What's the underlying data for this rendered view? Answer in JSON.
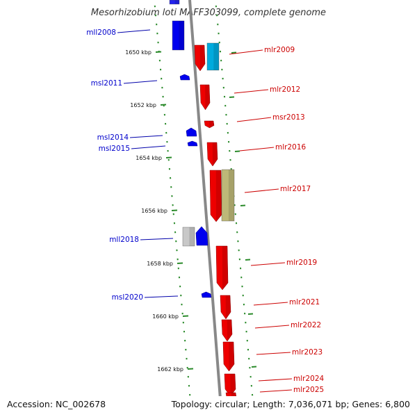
{
  "title": "Mesorhizobium loti MAFF303099, complete genome",
  "accession": "Accession: NC_002678",
  "summary": "Topology: circular; Length: 7,036,071 bp; Genes: 6,800",
  "colors": {
    "backbone": "#888888",
    "tick": "#2a8a2a",
    "minus_label": "#0000cc",
    "plus_label": "#cc0000",
    "leader": "#0000aa"
  },
  "ticks": [
    "1650 kbp",
    "1652 kbp",
    "1654 kbp",
    "1656 kbp",
    "1658 kbp",
    "1660 kbp",
    "1662 kbp"
  ],
  "plus_genes": [
    {
      "name": "mlr2009",
      "color": "#ee0000"
    },
    {
      "name": "mlr2012",
      "color": "#ee0000"
    },
    {
      "name": "msr2013",
      "color": "#ee0000"
    },
    {
      "name": "mlr2016",
      "color": "#ee0000"
    },
    {
      "name": "mlr2017",
      "color": "#ee0000"
    },
    {
      "name": "mlr2019",
      "color": "#ee0000"
    },
    {
      "name": "mlr2021",
      "color": "#ee0000"
    },
    {
      "name": "mlr2022",
      "color": "#ee0000"
    },
    {
      "name": "mlr2023",
      "color": "#ee0000"
    },
    {
      "name": "mlr2024",
      "color": "#ee0000"
    },
    {
      "name": "mlr2025",
      "color": "#ee0000"
    }
  ],
  "minus_genes": [
    {
      "name": "mll2008",
      "color": "#0000ee"
    },
    {
      "name": "msl2011",
      "color": "#0000ee"
    },
    {
      "name": "msl2014",
      "color": "#0000ee"
    },
    {
      "name": "msl2015",
      "color": "#0000ee"
    },
    {
      "name": "mll2018",
      "color": "#0000ee"
    },
    {
      "name": "msl2020",
      "color": "#0000ee"
    }
  ]
}
